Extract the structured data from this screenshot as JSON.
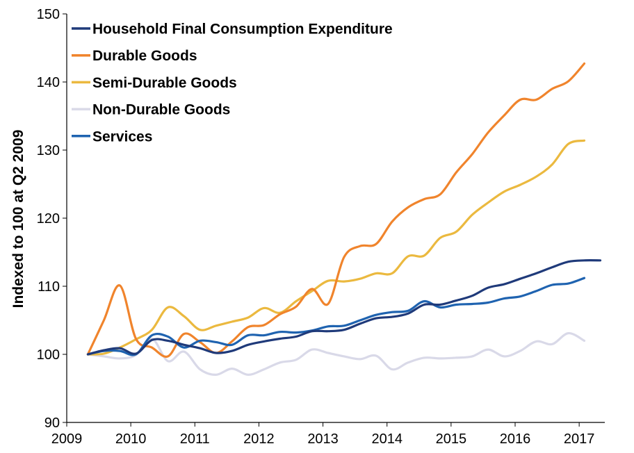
{
  "chart_data": {
    "type": "line",
    "title": "",
    "xlabel": "",
    "ylabel": "Indexed to 100 at Q2 2009",
    "ylim": [
      90,
      150
    ],
    "xlim": [
      2009,
      2017.4
    ],
    "yticks": [
      90,
      100,
      110,
      120,
      130,
      140,
      150
    ],
    "xticks": [
      2009,
      2010,
      2011,
      2012,
      2013,
      2014,
      2015,
      2016,
      2017
    ],
    "grid": false,
    "legend_position": "top-left",
    "series": [
      {
        "name": "Household Final Consumption Expenditure",
        "color": "#1f3a7a",
        "x": [
          2009.33,
          2009.58,
          2009.83,
          2010.08,
          2010.33,
          2010.58,
          2010.83,
          2011.08,
          2011.33,
          2011.58,
          2011.83,
          2012.08,
          2012.33,
          2012.58,
          2012.83,
          2013.08,
          2013.33,
          2013.58,
          2013.83,
          2014.08,
          2014.33,
          2014.58,
          2014.83,
          2015.08,
          2015.33,
          2015.58,
          2015.83,
          2016.08,
          2016.33,
          2016.58,
          2016.83,
          2017.08,
          2017.33
        ],
        "y": [
          100.0,
          100.6,
          100.9,
          100.1,
          102.1,
          102.0,
          101.4,
          100.9,
          100.2,
          100.5,
          101.4,
          101.9,
          102.3,
          102.6,
          103.4,
          103.4,
          103.6,
          104.5,
          105.3,
          105.5,
          106.0,
          107.3,
          107.3,
          107.9,
          108.6,
          109.8,
          110.3,
          111.1,
          111.9,
          112.8,
          113.6,
          113.8,
          113.8
        ]
      },
      {
        "name": "Durable Goods",
        "color": "#f0842c",
        "x": [
          2009.33,
          2009.58,
          2009.83,
          2010.08,
          2010.33,
          2010.58,
          2010.83,
          2011.08,
          2011.33,
          2011.58,
          2011.83,
          2012.08,
          2012.33,
          2012.58,
          2012.83,
          2013.08,
          2013.33,
          2013.58,
          2013.83,
          2014.08,
          2014.33,
          2014.58,
          2014.83,
          2015.08,
          2015.33,
          2015.58,
          2015.83,
          2016.08,
          2016.33,
          2016.58,
          2016.83,
          2017.08
        ],
        "y": [
          100.0,
          105.0,
          110.1,
          102.3,
          101.0,
          99.7,
          103.0,
          101.8,
          100.2,
          101.9,
          104.0,
          104.3,
          105.9,
          107.0,
          109.6,
          107.4,
          114.3,
          115.9,
          116.2,
          119.5,
          121.6,
          122.8,
          123.5,
          126.7,
          129.4,
          132.6,
          135.1,
          137.4,
          137.4,
          139.0,
          140.1,
          142.7
        ]
      },
      {
        "name": "Semi-Durable Goods",
        "color": "#ebb93f",
        "x": [
          2009.33,
          2009.58,
          2009.83,
          2010.08,
          2010.33,
          2010.58,
          2010.83,
          2011.08,
          2011.33,
          2011.58,
          2011.83,
          2012.08,
          2012.33,
          2012.58,
          2012.83,
          2013.08,
          2013.33,
          2013.58,
          2013.83,
          2014.08,
          2014.33,
          2014.58,
          2014.83,
          2015.08,
          2015.33,
          2015.58,
          2015.83,
          2016.08,
          2016.33,
          2016.58,
          2016.83,
          2017.08
        ],
        "y": [
          100.0,
          100.1,
          101.0,
          102.2,
          103.6,
          106.9,
          105.6,
          103.6,
          104.2,
          104.8,
          105.4,
          106.8,
          106.1,
          107.8,
          109.3,
          110.8,
          110.7,
          111.1,
          111.9,
          111.9,
          114.4,
          114.5,
          117.1,
          118.0,
          120.5,
          122.3,
          123.9,
          124.9,
          126.1,
          127.9,
          130.9,
          131.4
        ]
      },
      {
        "name": "Non-Durable Goods",
        "color": "#d9d9e8",
        "x": [
          2009.33,
          2009.58,
          2009.83,
          2010.08,
          2010.33,
          2010.58,
          2010.83,
          2011.08,
          2011.33,
          2011.58,
          2011.83,
          2012.08,
          2012.33,
          2012.58,
          2012.83,
          2013.08,
          2013.33,
          2013.58,
          2013.83,
          2014.08,
          2014.33,
          2014.58,
          2014.83,
          2015.08,
          2015.33,
          2015.58,
          2015.83,
          2016.08,
          2016.33,
          2016.58,
          2016.83,
          2017.08
        ],
        "y": [
          100.0,
          99.7,
          99.4,
          99.9,
          102.3,
          99.0,
          100.4,
          97.8,
          97.0,
          97.9,
          97.0,
          97.8,
          98.8,
          99.2,
          100.7,
          100.2,
          99.7,
          99.3,
          99.8,
          97.8,
          98.8,
          99.5,
          99.4,
          99.5,
          99.7,
          100.7,
          99.7,
          100.5,
          101.9,
          101.5,
          103.1,
          102.0
        ]
      },
      {
        "name": "Services",
        "color": "#1f63b0",
        "x": [
          2009.33,
          2009.58,
          2009.83,
          2010.08,
          2010.33,
          2010.58,
          2010.83,
          2011.08,
          2011.33,
          2011.58,
          2011.83,
          2012.08,
          2012.33,
          2012.58,
          2012.83,
          2013.08,
          2013.33,
          2013.58,
          2013.83,
          2014.08,
          2014.33,
          2014.58,
          2014.83,
          2015.08,
          2015.33,
          2015.58,
          2015.83,
          2016.08,
          2016.33,
          2016.58,
          2016.83,
          2017.08
        ],
        "y": [
          100.0,
          100.5,
          100.5,
          100.0,
          102.8,
          102.6,
          101.0,
          102.0,
          101.8,
          101.4,
          102.8,
          102.8,
          103.3,
          103.2,
          103.5,
          104.1,
          104.2,
          105.0,
          105.8,
          106.2,
          106.4,
          107.8,
          106.9,
          107.3,
          107.4,
          107.6,
          108.2,
          108.5,
          109.3,
          110.2,
          110.4,
          111.2
        ]
      }
    ]
  }
}
